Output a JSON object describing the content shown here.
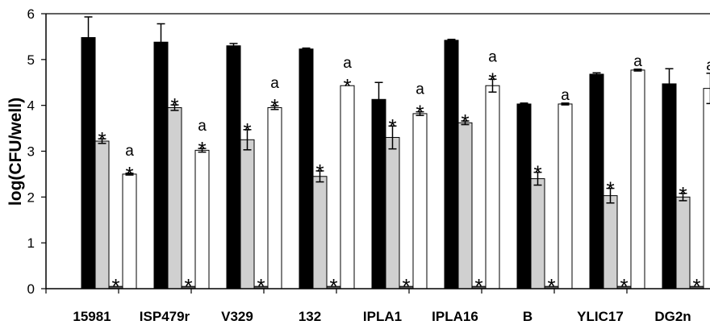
{
  "chart_data": {
    "type": "bar",
    "title": "",
    "xlabel": "",
    "ylabel": "log(CFU/well)",
    "ylim": [
      0,
      6
    ],
    "yticks": [
      0,
      1,
      2,
      3,
      4,
      5,
      6
    ],
    "grid": false,
    "categories": [
      "15981",
      "ISP479r",
      "V329",
      "132",
      "IPLA1",
      "IPLA16",
      "B",
      "YLIC17",
      "DG2n"
    ],
    "series": [
      {
        "color": "#000000",
        "values": [
          5.48,
          5.38,
          5.3,
          5.23,
          4.13,
          5.42,
          4.03,
          4.68,
          4.47
        ],
        "errors": [
          0.45,
          0.4,
          0.05,
          0.02,
          0.37,
          0.02,
          0.02,
          0.03,
          0.33
        ],
        "annotations": [
          "",
          "",
          "",
          "",
          "",
          "",
          "",
          "",
          ""
        ]
      },
      {
        "color": "#d0d0d0",
        "values": [
          3.22,
          3.95,
          3.25,
          2.45,
          3.3,
          3.62,
          2.4,
          2.03,
          2.0
        ],
        "errors": [
          0.05,
          0.06,
          0.22,
          0.12,
          0.25,
          0.04,
          0.14,
          0.16,
          0.08
        ],
        "annotations": [
          "*",
          "*",
          "*",
          "*",
          "*",
          "*",
          "*",
          "*",
          "*"
        ]
      },
      {
        "color": "#555555",
        "values": [
          0.05,
          0.05,
          0.05,
          0.05,
          0.05,
          0.05,
          0.05,
          0.05,
          0.05
        ],
        "errors": [
          0,
          0,
          0,
          0,
          0,
          0,
          0,
          0,
          0
        ],
        "annotations": [
          "*",
          "*",
          "*",
          "*",
          "*",
          "*",
          "*",
          "*",
          "*"
        ]
      },
      {
        "color": "#ffffff",
        "values": [
          2.5,
          3.02,
          3.95,
          4.43,
          3.82,
          4.43,
          4.03,
          4.77,
          4.37
        ],
        "errors": [
          0.02,
          0.04,
          0.04,
          0.0,
          0.04,
          0.14,
          0.02,
          0.02,
          0.33
        ],
        "annotations": [
          "a*",
          "a*",
          "a*",
          "a*",
          "a*",
          "a*",
          "a",
          "a",
          "a"
        ]
      }
    ]
  }
}
